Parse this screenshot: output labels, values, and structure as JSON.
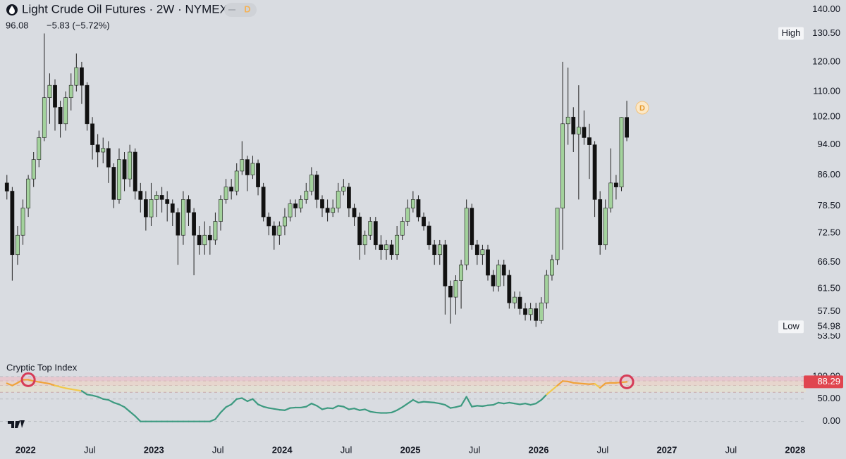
{
  "chart_data": [
    {
      "type": "candlestick",
      "title": "Light Crude Oil Futures · 2W · NYMEX",
      "badge": "D",
      "change": "−5.83 (−5.72%)",
      "log_scale": true,
      "up_color": "#a3d29c",
      "down_color": "#111111",
      "wick_color": "#222222",
      "ylim": [
        50,
        144
      ],
      "yticks": [
        {
          "value": 53.5,
          "label": "53.50"
        },
        {
          "value": 57.5,
          "label": "57.50"
        },
        {
          "value": 61.5,
          "label": "61.50"
        },
        {
          "value": 66.5,
          "label": "66.50"
        },
        {
          "value": 72.5,
          "label": "72.50"
        },
        {
          "value": 78.5,
          "label": "78.50"
        },
        {
          "value": 86,
          "label": "86.00"
        },
        {
          "value": 94,
          "label": "94.00"
        },
        {
          "value": 102,
          "label": "102.00"
        },
        {
          "value": 110,
          "label": "110.00"
        },
        {
          "value": 120,
          "label": "120.00"
        },
        {
          "value": 130.5,
          "label": "130.50"
        },
        {
          "value": 140,
          "label": "140.00"
        }
      ],
      "markers": [
        {
          "name": "High",
          "value": 130.5,
          "label": "130.50"
        },
        {
          "name": "Low",
          "value": 54.98,
          "label": "54.98"
        }
      ],
      "xlim": [
        "2021-11",
        "2028-02"
      ],
      "xticks": [
        {
          "value": "2022-01",
          "label": "2022"
        },
        {
          "value": "2022-07",
          "label": "Jul"
        },
        {
          "value": "2023-01",
          "label": "2023"
        },
        {
          "value": "2023-07",
          "label": "Jul"
        },
        {
          "value": "2024-01",
          "label": "2024"
        },
        {
          "value": "2024-07",
          "label": "Jul"
        },
        {
          "value": "2025-01",
          "label": "2025"
        },
        {
          "value": "2025-07",
          "label": "Jul"
        },
        {
          "value": "2026-01",
          "label": "2026"
        },
        {
          "value": "2026-07",
          "label": "Jul"
        },
        {
          "value": "2027-01",
          "label": "2027"
        },
        {
          "value": "2027-07",
          "label": "Jul"
        },
        {
          "value": "2028-01",
          "label": "2028"
        }
      ],
      "x": [
        "2021-11",
        "2021-11",
        "2021-12",
        "2021-12",
        "2022-01",
        "2022-01",
        "2022-02",
        "2022-02",
        "2022-03",
        "2022-03",
        "2022-04",
        "2022-04",
        "2022-05",
        "2022-05",
        "2022-06",
        "2022-06",
        "2022-07",
        "2022-07",
        "2022-08",
        "2022-08",
        "2022-09",
        "2022-09",
        "2022-10",
        "2022-10",
        "2022-11",
        "2022-11",
        "2022-12",
        "2022-12",
        "2023-01",
        "2023-01",
        "2023-02",
        "2023-02",
        "2023-03",
        "2023-03",
        "2023-04",
        "2023-04",
        "2023-05",
        "2023-05",
        "2023-06",
        "2023-06",
        "2023-07",
        "2023-07",
        "2023-08",
        "2023-08",
        "2023-09",
        "2023-09",
        "2023-10",
        "2023-10",
        "2023-11",
        "2023-11",
        "2023-12",
        "2023-12",
        "2024-01",
        "2024-01",
        "2024-02",
        "2024-02",
        "2024-03",
        "2024-03",
        "2024-04",
        "2024-04",
        "2024-05",
        "2024-05",
        "2024-06",
        "2024-06",
        "2024-07",
        "2024-07",
        "2024-08",
        "2024-08",
        "2024-09",
        "2024-09",
        "2024-10",
        "2024-10",
        "2024-11",
        "2024-11",
        "2024-12",
        "2024-12",
        "2025-01",
        "2025-01",
        "2025-02",
        "2025-02",
        "2025-03",
        "2025-03",
        "2025-04",
        "2025-04",
        "2025-05",
        "2025-05",
        "2025-06",
        "2025-06",
        "2025-07",
        "2025-07",
        "2025-08",
        "2025-08",
        "2025-09",
        "2025-09",
        "2025-10",
        "2025-10",
        "2025-11",
        "2025-11",
        "2025-12",
        "2025-12",
        "2026-01",
        "2026-01",
        "2026-02",
        "2026-02",
        "2026-03",
        "2026-03",
        "2026-04",
        "2026-04",
        "2026-05",
        "2026-05",
        "2026-06",
        "2026-06",
        "2026-07",
        "2026-07",
        "2026-08",
        "2026-08",
        "2026-09"
      ],
      "ohlc": [
        [
          84,
          86,
          80,
          82
        ],
        [
          82,
          83,
          63,
          68
        ],
        [
          68,
          74,
          66,
          72
        ],
        [
          72,
          80,
          70,
          78
        ],
        [
          78,
          86,
          76,
          85
        ],
        [
          85,
          92,
          83,
          90
        ],
        [
          90,
          98,
          88,
          96
        ],
        [
          96,
          130.5,
          95,
          108
        ],
        [
          108,
          116,
          100,
          112
        ],
        [
          112,
          114,
          98,
          105
        ],
        [
          105,
          107,
          96,
          100
        ],
        [
          100,
          110,
          98,
          108
        ],
        [
          108,
          116,
          104,
          112
        ],
        [
          112,
          123,
          110,
          118
        ],
        [
          118,
          120,
          106,
          112
        ],
        [
          112,
          113,
          98,
          100
        ],
        [
          100,
          102,
          90,
          94
        ],
        [
          94,
          97,
          88,
          92
        ],
        [
          92,
          96,
          89,
          93
        ],
        [
          93,
          95,
          84,
          88
        ],
        [
          88,
          89,
          78,
          80
        ],
        [
          80,
          93,
          79,
          90
        ],
        [
          90,
          92,
          82,
          85
        ],
        [
          85,
          94,
          83,
          92
        ],
        [
          92,
          93,
          80,
          82
        ],
        [
          82,
          84,
          77,
          80
        ],
        [
          80,
          82,
          73,
          76
        ],
        [
          76,
          84,
          74,
          80
        ],
        [
          80,
          82,
          76,
          81
        ],
        [
          81,
          83,
          77,
          80
        ],
        [
          80,
          82,
          75,
          79
        ],
        [
          79,
          80,
          74,
          77
        ],
        [
          77,
          78,
          66,
          72
        ],
        [
          72,
          82,
          70,
          80
        ],
        [
          80,
          81,
          74,
          77
        ],
        [
          77,
          78,
          64,
          72
        ],
        [
          72,
          74,
          68,
          70
        ],
        [
          70,
          75,
          68,
          72
        ],
        [
          72,
          74,
          68,
          71
        ],
        [
          71,
          77,
          70,
          75
        ],
        [
          75,
          81,
          73,
          80
        ],
        [
          80,
          85,
          79,
          83
        ],
        [
          83,
          85,
          80,
          82
        ],
        [
          82,
          89,
          81,
          87
        ],
        [
          87,
          95,
          86,
          90
        ],
        [
          90,
          91,
          82,
          86
        ],
        [
          86,
          91,
          85,
          89
        ],
        [
          89,
          90,
          81,
          83
        ],
        [
          83,
          84,
          75,
          76
        ],
        [
          76,
          77,
          72,
          74
        ],
        [
          74,
          75,
          69,
          72
        ],
        [
          72,
          75,
          70,
          74
        ],
        [
          74,
          78,
          72,
          76
        ],
        [
          76,
          80,
          75,
          79
        ],
        [
          79,
          80,
          76,
          78
        ],
        [
          78,
          81,
          77,
          80
        ],
        [
          80,
          84,
          79,
          82
        ],
        [
          82,
          88,
          81,
          86
        ],
        [
          86,
          87,
          78,
          80
        ],
        [
          80,
          81,
          76,
          78
        ],
        [
          78,
          80,
          75,
          77
        ],
        [
          77,
          80,
          76,
          78
        ],
        [
          78,
          84,
          77,
          82
        ],
        [
          82,
          85,
          81,
          83
        ],
        [
          83,
          84,
          76,
          78
        ],
        [
          78,
          79,
          74,
          76
        ],
        [
          76,
          77,
          67,
          70
        ],
        [
          70,
          73,
          68,
          72
        ],
        [
          72,
          76,
          71,
          75
        ],
        [
          75,
          76,
          69,
          70
        ],
        [
          70,
          72,
          67,
          69
        ],
        [
          69,
          71,
          67,
          70
        ],
        [
          70,
          71,
          67,
          68
        ],
        [
          68,
          74,
          67,
          72
        ],
        [
          72,
          76,
          71,
          75
        ],
        [
          75,
          80,
          74,
          78
        ],
        [
          78,
          82,
          77,
          80
        ],
        [
          80,
          81,
          75,
          76
        ],
        [
          76,
          77,
          73,
          74
        ],
        [
          74,
          75,
          69,
          70
        ],
        [
          70,
          71,
          66,
          68
        ],
        [
          68,
          71,
          66,
          70
        ],
        [
          70,
          71,
          57,
          62
        ],
        [
          62,
          63,
          55.5,
          60
        ],
        [
          60,
          64,
          57,
          63
        ],
        [
          63,
          67,
          58,
          66
        ],
        [
          66,
          80,
          65,
          78
        ],
        [
          78,
          79,
          69,
          70
        ],
        [
          70,
          71,
          66,
          68
        ],
        [
          68,
          70,
          66,
          69
        ],
        [
          69,
          70,
          63,
          64
        ],
        [
          64,
          65,
          61,
          62
        ],
        [
          62,
          67,
          61,
          66
        ],
        [
          66,
          67,
          62,
          64
        ],
        [
          64,
          65,
          58,
          59
        ],
        [
          59,
          61,
          58,
          60
        ],
        [
          60,
          61,
          57,
          58
        ],
        [
          58,
          59,
          56,
          57
        ],
        [
          57,
          59,
          56,
          58
        ],
        [
          58,
          59,
          54.98,
          56
        ],
        [
          56,
          60,
          55.5,
          59
        ],
        [
          59,
          65,
          58,
          64
        ],
        [
          64,
          68,
          63,
          67
        ],
        [
          67,
          78,
          66,
          78
        ],
        [
          78,
          120,
          69,
          100
        ],
        [
          100,
          118,
          94,
          102
        ],
        [
          102,
          105,
          92,
          97
        ],
        [
          97,
          112,
          80,
          99
        ],
        [
          99,
          104,
          94,
          96
        ],
        [
          96,
          100,
          85,
          94
        ],
        [
          94,
          95,
          76,
          80
        ],
        [
          80,
          82,
          68,
          70
        ],
        [
          70,
          80,
          69,
          78
        ],
        [
          78,
          93,
          77,
          84
        ],
        [
          84,
          86,
          80,
          83
        ],
        [
          83,
          102,
          82,
          101.91
        ],
        [
          101.91,
          107,
          95,
          96.08
        ]
      ]
    },
    {
      "type": "line",
      "title": "Cryptic Top Index",
      "color": "#3d9a80",
      "color_rules": [
        {
          "above": 80,
          "color": "#f0a23a"
        },
        {
          "above": 65,
          "color": "#f2c94c"
        }
      ],
      "signal_color": "#d63b57",
      "signals": [
        4,
        116
      ],
      "label_color": "#e0454f",
      "bands": [
        {
          "from": 90,
          "to": 100,
          "color": "#e8c3cb"
        },
        {
          "from": 80,
          "to": 90,
          "color": "#ead3c8"
        },
        {
          "from": 65,
          "to": 80,
          "color": "#e3e0cf"
        }
      ],
      "ylim": [
        -35,
        103
      ],
      "yticks": [
        {
          "value": 0,
          "label": "0.00"
        },
        {
          "value": 50,
          "label": "50.00"
        },
        {
          "value": 100,
          "label": "100.00"
        }
      ],
      "values": [
        85,
        80,
        86,
        93,
        93,
        90,
        88,
        86,
        84,
        80,
        77,
        74,
        72,
        70,
        68,
        60,
        58,
        55,
        50,
        48,
        42,
        38,
        32,
        22,
        12,
        0,
        0,
        0,
        0,
        0,
        0,
        0,
        0,
        0,
        0,
        0,
        0,
        0,
        0,
        5,
        20,
        32,
        38,
        50,
        52,
        45,
        50,
        38,
        33,
        30,
        28,
        26,
        25,
        30,
        31,
        31,
        33,
        40,
        35,
        27,
        30,
        29,
        35,
        33,
        27,
        29,
        25,
        27,
        22,
        20,
        19,
        19,
        20,
        25,
        32,
        40,
        48,
        42,
        44,
        43,
        42,
        40,
        37,
        30,
        32,
        35,
        55,
        33,
        35,
        34,
        36,
        37,
        42,
        40,
        42,
        40,
        38,
        40,
        37,
        40,
        48,
        60,
        70,
        80,
        90,
        89,
        86,
        85,
        84,
        83,
        84,
        75,
        85,
        86,
        86,
        87,
        88.29
      ]
    }
  ]
}
